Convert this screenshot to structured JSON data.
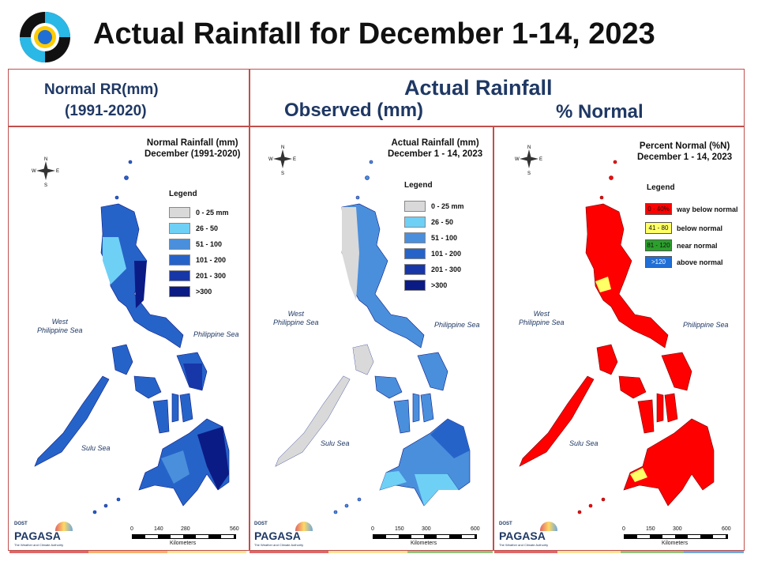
{
  "title": "Actual Rainfall for December 1-14, 2023",
  "header": {
    "normal_line1": "Normal RR(mm)",
    "normal_line2": "(1991-2020)",
    "actual": "Actual Rainfall",
    "observed": "Observed (mm)",
    "percent": "% Normal"
  },
  "maps": [
    {
      "title_line1": "Normal Rainfall (mm)",
      "title_line2": "December (1991-2020)",
      "legend_title": "Legend",
      "legend": [
        {
          "label": "0 - 25 mm",
          "color": "#d9d9d9"
        },
        {
          "label": "26 - 50",
          "color": "#6fd0f5"
        },
        {
          "label": "51 - 100",
          "color": "#4a8fdc"
        },
        {
          "label": "101 - 200",
          "color": "#2663c9"
        },
        {
          "label": "201 - 300",
          "color": "#1737a8"
        },
        {
          "label": ">300",
          "color": "#0b1b85"
        }
      ],
      "seas": {
        "west": "West\nPhilippine Sea",
        "east": "Philippine Sea",
        "sulu": "Sulu Sea"
      },
      "scale": [
        "0",
        "140",
        "280",
        "560"
      ],
      "scale_unit": "Kilometers"
    },
    {
      "title_line1": "Actual Rainfall (mm)",
      "title_line2": "December 1 - 14, 2023",
      "legend_title": "Legend",
      "legend": [
        {
          "label": "0 - 25 mm",
          "color": "#d9d9d9"
        },
        {
          "label": "26 - 50",
          "color": "#6fd0f5"
        },
        {
          "label": "51 - 100",
          "color": "#4a8fdc"
        },
        {
          "label": "101 - 200",
          "color": "#2663c9"
        },
        {
          "label": "201 - 300",
          "color": "#1737a8"
        },
        {
          "label": ">300",
          "color": "#0b1b85"
        }
      ],
      "seas": {
        "west": "West\nPhilippine Sea",
        "east": "Philippine Sea",
        "sulu": "Sulu Sea"
      },
      "scale": [
        "0",
        "150",
        "300",
        "600"
      ],
      "scale_unit": "Kilometers"
    },
    {
      "title_line1": "Percent Normal (%N)",
      "title_line2": "December 1 - 14, 2023",
      "legend_title": "Legend",
      "legend": [
        {
          "swatch": "0 - 40%",
          "label": "way below normal",
          "color": "#ff0000"
        },
        {
          "swatch": "41 - 80",
          "label": "below normal",
          "color": "#ffff66"
        },
        {
          "swatch": "81 - 120",
          "label": "near normal",
          "color": "#2ca02c"
        },
        {
          "swatch": ">120",
          "label": "above normal",
          "color": "#1f6fd6"
        }
      ],
      "seas": {
        "west": "West\nPhilippine Sea",
        "east": "Philippine Sea",
        "sulu": "Sulu Sea"
      },
      "scale": [
        "0",
        "150",
        "300",
        "600"
      ],
      "scale_unit": "Kilometers"
    }
  ],
  "footer_logo": {
    "dost": "DOST",
    "name": "PAGASA",
    "tagline": "The Weather and Climate Authority"
  },
  "compass": {
    "n": "N",
    "s": "S",
    "e": "E",
    "w": "W"
  },
  "colors": {
    "frame": "#c0504d",
    "header_text": "#1f3864",
    "strip": [
      "#e06666",
      "#f6b26b",
      "#ffe599",
      "#93c47d",
      "#6fa8dc"
    ]
  }
}
